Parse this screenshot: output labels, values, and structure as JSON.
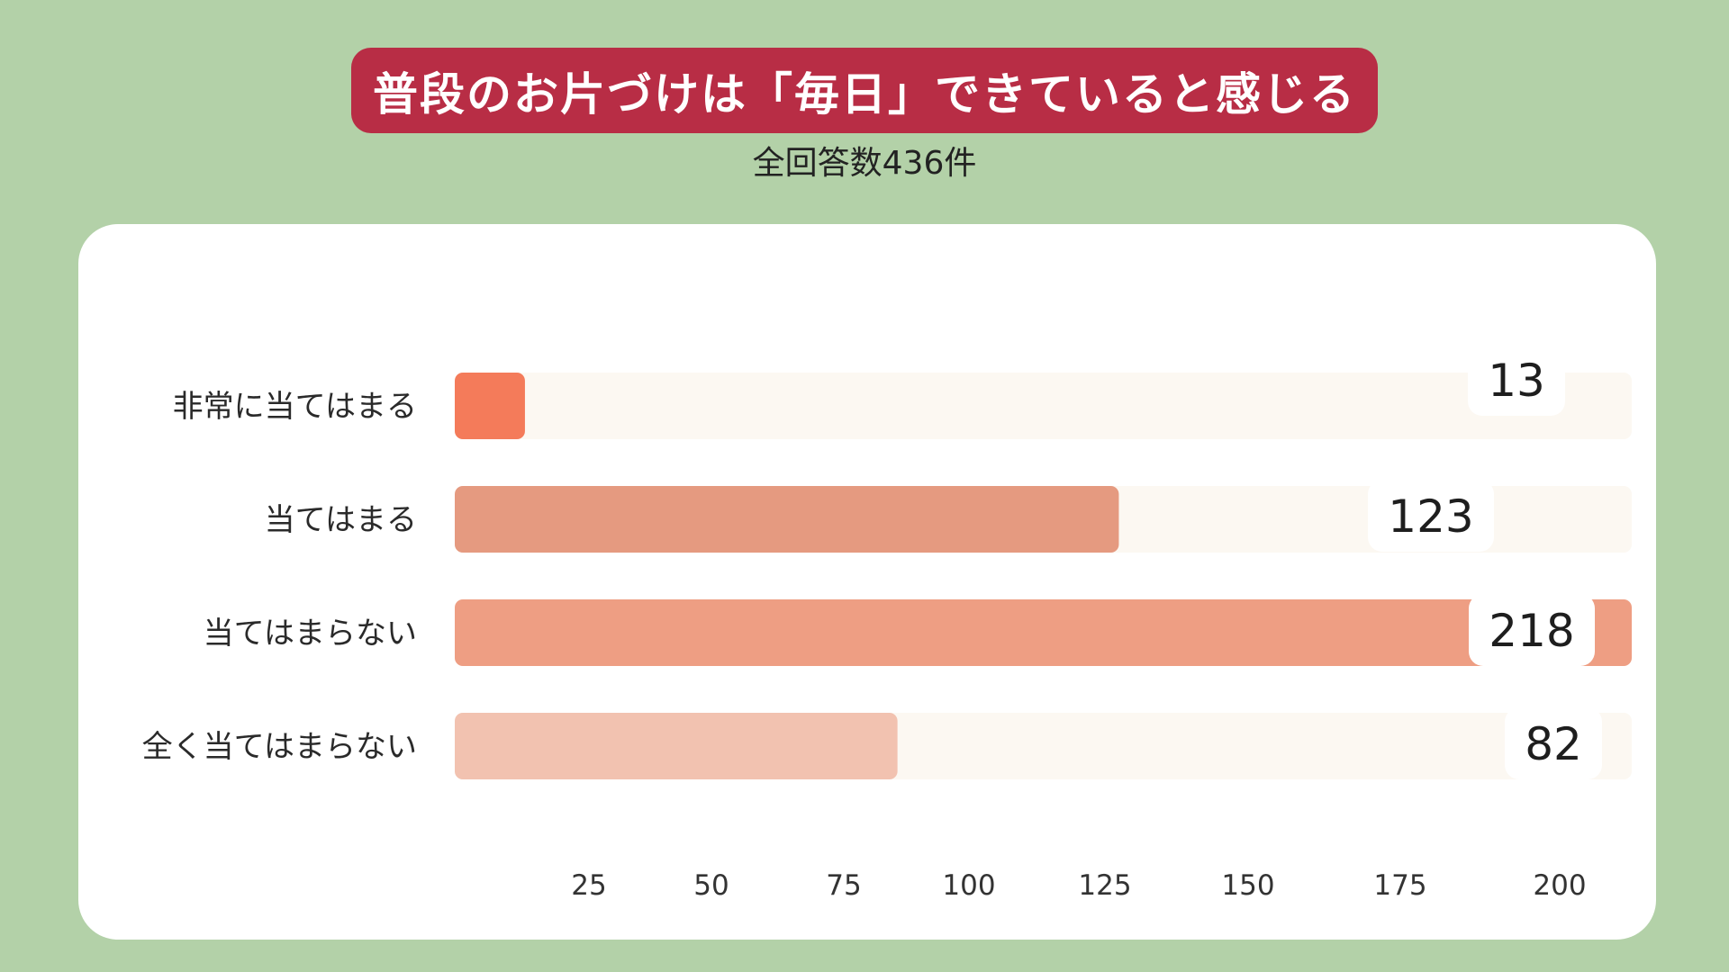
{
  "header": {
    "title": "普段のお片づけは「毎日」できていると感じる",
    "subtitle": "全回答数436件"
  },
  "colors": {
    "background": "#b3d1a8",
    "banner": "#b82d45",
    "track": "#fcf8f2",
    "bars": [
      "#f47b5a",
      "#e59a80",
      "#ee9e83",
      "#f2c2b0"
    ]
  },
  "chart_data": {
    "type": "bar",
    "orientation": "horizontal",
    "title": "普段のお片づけは「毎日」できていると感じる",
    "subtitle": "全回答数436件",
    "categories": [
      "非常に当てはまる",
      "当てはまる",
      "当てはまらない",
      "全く当てはまらない"
    ],
    "values": [
      13,
      123,
      218,
      82
    ],
    "xticks": [
      25,
      50,
      75,
      100,
      125,
      150,
      175,
      200
    ],
    "xlim": [
      0,
      218
    ],
    "grid": false,
    "legend": "none"
  }
}
